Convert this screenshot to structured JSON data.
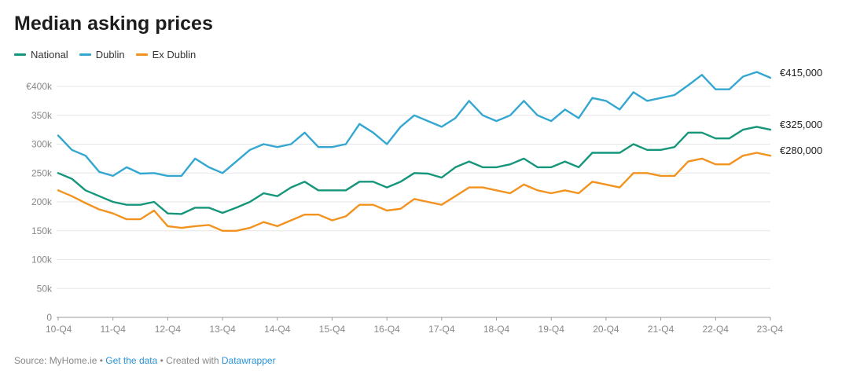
{
  "chart_data": {
    "type": "line",
    "title": "Median asking prices",
    "xlabel": "",
    "ylabel": "",
    "ylim": [
      0,
      430000
    ],
    "y_ticks": [
      {
        "value": 0,
        "label": "0"
      },
      {
        "value": 50000,
        "label": "50k"
      },
      {
        "value": 100000,
        "label": "100k"
      },
      {
        "value": 150000,
        "label": "150k"
      },
      {
        "value": 200000,
        "label": "200k"
      },
      {
        "value": 250000,
        "label": "250k"
      },
      {
        "value": 300000,
        "label": "300k"
      },
      {
        "value": 350000,
        "label": "350k"
      },
      {
        "value": 400000,
        "label": "€400k"
      }
    ],
    "x_ticks": [
      {
        "index": 0,
        "label": "10-Q4"
      },
      {
        "index": 4,
        "label": "11-Q4"
      },
      {
        "index": 8,
        "label": "12-Q4"
      },
      {
        "index": 12,
        "label": "13-Q4"
      },
      {
        "index": 16,
        "label": "14-Q4"
      },
      {
        "index": 20,
        "label": "15-Q4"
      },
      {
        "index": 24,
        "label": "16-Q4"
      },
      {
        "index": 28,
        "label": "17-Q4"
      },
      {
        "index": 32,
        "label": "18-Q4"
      },
      {
        "index": 36,
        "label": "19-Q4"
      },
      {
        "index": 40,
        "label": "20-Q4"
      },
      {
        "index": 44,
        "label": "21-Q4"
      },
      {
        "index": 48,
        "label": "22-Q4"
      },
      {
        "index": 52,
        "label": "23-Q4"
      }
    ],
    "grid": true,
    "legend_position": "top-left",
    "series": [
      {
        "name": "National",
        "color": "#15967a",
        "end_label": "€325,000",
        "values": [
          250000,
          240000,
          220000,
          210000,
          200000,
          195000,
          195000,
          200000,
          180000,
          179000,
          190000,
          190000,
          181000,
          190000,
          200000,
          215000,
          210000,
          225000,
          235000,
          220000,
          220000,
          220000,
          235000,
          235000,
          225000,
          235000,
          250000,
          249000,
          242000,
          260000,
          270000,
          260000,
          260000,
          265000,
          275000,
          260000,
          260000,
          270000,
          260000,
          285000,
          285000,
          285000,
          300000,
          290000,
          290000,
          295000,
          320000,
          320000,
          310000,
          310000,
          325000,
          330000,
          325000
        ]
      },
      {
        "name": "Dublin",
        "color": "#34a7d1",
        "end_label": "€415,000",
        "values": [
          315000,
          290000,
          280000,
          252000,
          245000,
          260000,
          249000,
          250000,
          245000,
          245000,
          275000,
          260000,
          250000,
          270000,
          290000,
          300000,
          295000,
          300000,
          320000,
          295000,
          295000,
          300000,
          335000,
          320000,
          300000,
          330000,
          350000,
          340000,
          330000,
          345000,
          375000,
          350000,
          340000,
          350000,
          375000,
          350000,
          340000,
          360000,
          345000,
          380000,
          375000,
          360000,
          390000,
          375000,
          380000,
          385000,
          402000,
          420000,
          395000,
          395000,
          417000,
          425000,
          415000
        ]
      },
      {
        "name": "Ex Dublin",
        "color": "#f2921f",
        "end_label": "€280,000",
        "values": [
          220000,
          210000,
          198000,
          187000,
          180000,
          170000,
          170000,
          185000,
          158000,
          155000,
          158000,
          160000,
          150000,
          150000,
          155000,
          165000,
          158000,
          168000,
          178000,
          178000,
          168000,
          175000,
          195000,
          195000,
          185000,
          188000,
          205000,
          200000,
          195000,
          210000,
          225000,
          225000,
          220000,
          215000,
          230000,
          220000,
          215000,
          220000,
          215000,
          235000,
          230000,
          225000,
          250000,
          250000,
          245000,
          245000,
          270000,
          275000,
          265000,
          265000,
          280000,
          285000,
          280000
        ]
      }
    ]
  },
  "footer": {
    "source_text": "Source: MyHome.ie • ",
    "get_data": "Get the data",
    "created_text": " • Created with ",
    "datawrapper": "Datawrapper"
  }
}
